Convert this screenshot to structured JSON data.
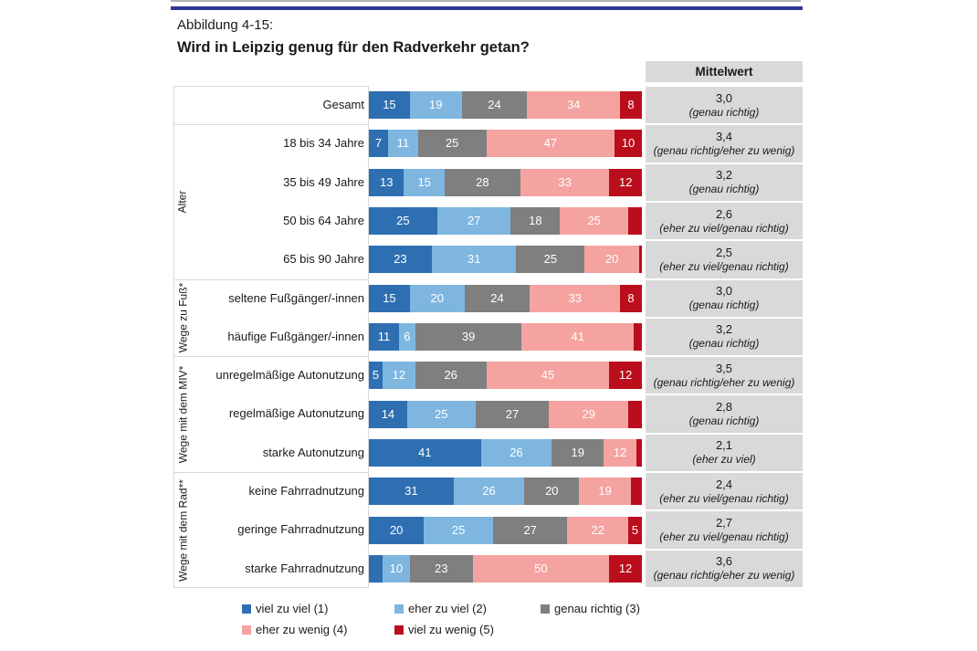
{
  "page": {
    "figure_label": "Abbildung 4-15:",
    "title": "Wird in Leipzig genug für den Radverkehr getan?"
  },
  "table": {
    "mean_header": "Mittelwert"
  },
  "colors": {
    "accent_line": "#2b3990",
    "top_rule": "#9a9a9a",
    "panel_border": "#d9d9d9",
    "mean_cell_bg": "#d9d9d9",
    "text": "#1a1a1a",
    "bar_label_text": "#ffffff"
  },
  "chart_data": {
    "type": "bar",
    "stacked": true,
    "orientation": "horizontal",
    "unit": "percent",
    "xlim": [
      0,
      100
    ],
    "legend_position": "bottom",
    "series": [
      {
        "name": "viel zu viel (1)",
        "color": "#2e6fb2"
      },
      {
        "name": "eher zu viel (2)",
        "color": "#7eb6e0"
      },
      {
        "name": "genau richtig (3)",
        "color": "#7f7f7f"
      },
      {
        "name": "eher zu wenig (4)",
        "color": "#f4a3a0"
      },
      {
        "name": "viel zu wenig (5)",
        "color": "#bb0e1c"
      }
    ],
    "groups": [
      {
        "label": "Alter",
        "start": 1,
        "end": 4
      },
      {
        "label": "Wege zu Fuß*",
        "start": 5,
        "end": 6
      },
      {
        "label": "Wege mit dem MIV*",
        "start": 7,
        "end": 9
      },
      {
        "label": "Wege mit dem Rad**",
        "start": 10,
        "end": 12
      }
    ],
    "rows": [
      {
        "label": "Gesamt",
        "group": "",
        "values": [
          15,
          19,
          24,
          34,
          8
        ],
        "value_labels": [
          "15",
          "19",
          "24",
          "34",
          "8"
        ],
        "mean": "3,0",
        "mean_qualifier": "(genau richtig)"
      },
      {
        "label": "18 bis 34 Jahre",
        "group": "Alter",
        "values": [
          7,
          11,
          25,
          47,
          10
        ],
        "value_labels": [
          "7",
          "11",
          "25",
          "47",
          "10"
        ],
        "mean": "3,4",
        "mean_qualifier": "(genau richtig/eher zu wenig)"
      },
      {
        "label": "35 bis 49 Jahre",
        "group": "Alter",
        "values": [
          13,
          15,
          28,
          33,
          12
        ],
        "value_labels": [
          "13",
          "15",
          "28",
          "33",
          "12"
        ],
        "mean": "3,2",
        "mean_qualifier": "(genau richtig)"
      },
      {
        "label": "50 bis 64 Jahre",
        "group": "Alter",
        "values": [
          25,
          27,
          18,
          25,
          5
        ],
        "value_labels": [
          "25",
          "27",
          "18",
          "25",
          ""
        ],
        "mean": "2,6",
        "mean_qualifier": "(eher zu viel/genau richtig)"
      },
      {
        "label": "65 bis 90 Jahre",
        "group": "Alter",
        "values": [
          23,
          31,
          25,
          20,
          1
        ],
        "value_labels": [
          "23",
          "31",
          "25",
          "20",
          ""
        ],
        "mean": "2,5",
        "mean_qualifier": "(eher zu viel/genau richtig)"
      },
      {
        "label": "seltene Fußgänger/-innen",
        "group": "Wege zu Fuß*",
        "values": [
          15,
          20,
          24,
          33,
          8
        ],
        "value_labels": [
          "15",
          "20",
          "24",
          "33",
          "8"
        ],
        "mean": "3,0",
        "mean_qualifier": "(genau richtig)"
      },
      {
        "label": "häufige Fußgänger/-innen",
        "group": "Wege zu Fuß*",
        "values": [
          11,
          6,
          39,
          41,
          3
        ],
        "value_labels": [
          "11",
          "6",
          "39",
          "41",
          ""
        ],
        "mean": "3,2",
        "mean_qualifier": "(genau richtig)"
      },
      {
        "label": "unregelmäßige Autonutzung",
        "group": "Wege mit dem MIV*",
        "values": [
          5,
          12,
          26,
          45,
          12
        ],
        "value_labels": [
          "5",
          "12",
          "26",
          "45",
          "12"
        ],
        "mean": "3,5",
        "mean_qualifier": "(genau richtig/eher zu wenig)"
      },
      {
        "label": "regelmäßige Autonutzung",
        "group": "Wege mit dem MIV*",
        "values": [
          14,
          25,
          27,
          29,
          5
        ],
        "value_labels": [
          "14",
          "25",
          "27",
          "29",
          ""
        ],
        "mean": "2,8",
        "mean_qualifier": "(genau richtig)"
      },
      {
        "label": "starke Autonutzung",
        "group": "Wege mit dem MIV*",
        "values": [
          41,
          26,
          19,
          12,
          2
        ],
        "value_labels": [
          "41",
          "26",
          "19",
          "12",
          ""
        ],
        "mean": "2,1",
        "mean_qualifier": "(eher zu viel)"
      },
      {
        "label": "keine Fahrradnutzung",
        "group": "Wege mit dem Rad**",
        "values": [
          31,
          26,
          20,
          19,
          4
        ],
        "value_labels": [
          "31",
          "26",
          "20",
          "19",
          ""
        ],
        "mean": "2,4",
        "mean_qualifier": "(eher zu viel/genau richtig)"
      },
      {
        "label": "geringe Fahrradnutzung",
        "group": "Wege mit dem Rad**",
        "values": [
          20,
          25,
          27,
          22,
          5
        ],
        "value_labels": [
          "20",
          "25",
          "27",
          "22",
          "5"
        ],
        "mean": "2,7",
        "mean_qualifier": "(eher zu viel/genau richtig)"
      },
      {
        "label": "starke Fahrradnutzung",
        "group": "Wege mit dem Rad**",
        "values": [
          5,
          10,
          23,
          50,
          12
        ],
        "value_labels": [
          "",
          "10",
          "23",
          "50",
          "12"
        ],
        "mean": "3,6",
        "mean_qualifier": "(genau richtig/eher zu wenig)"
      }
    ]
  }
}
